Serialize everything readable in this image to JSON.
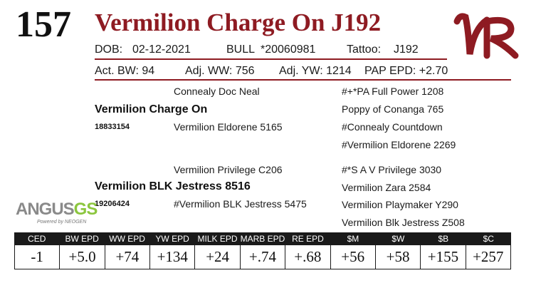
{
  "lot_number": "157",
  "animal_name": "Vermilion Charge On J192",
  "logo": {
    "letters": "VR",
    "color": "#8e1b22"
  },
  "info": {
    "dob_label": "DOB:",
    "dob": "02-12-2021",
    "sex": "BULL",
    "registration": "*20060981",
    "tattoo_label": "Tattoo:",
    "tattoo": "J192"
  },
  "performance": {
    "act_bw": "Act. BW: 94",
    "adj_ww": "Adj. WW: 756",
    "adj_yw": "Adj. YW: 1214",
    "pap_epd": "PAP EPD: +2.70"
  },
  "pedigree": {
    "sire": "Vermilion Charge On",
    "sire_reg": "18833154",
    "sire_sire": "Connealy Doc Neal",
    "sire_dam": "Vermilion Eldorene 5165",
    "sss": "#+*PA Full Power 1208",
    "ssd": "Poppy of Conanga 765",
    "sds": "#Connealy Countdown",
    "sdd": "#Vermilion Eldorene 2269",
    "dam": "Vermilion BLK Jestress 8516",
    "dam_reg": "19206424",
    "dam_sire": "Vermilion Privilege C206",
    "dam_dam": "#Vermilion BLK Jestress 5475",
    "dss": "#*S A V Privilege 3030",
    "dsd": "Vermilion Zara 2584",
    "dds": "Vermilion Playmaker Y290",
    "ddd": "Vermilion Blk Jestress Z508"
  },
  "angus_logo": {
    "angus": "ANGUS",
    "gs": "GS",
    "sub": "Powered by NEOGEN"
  },
  "epd_headers": [
    "CED",
    "BW EPD",
    "WW EPD",
    "YW EPD",
    "MILK EPD",
    "MARB EPD",
    "RE EPD",
    "$M",
    "$W",
    "$B",
    "$C"
  ],
  "epd_values": [
    "-1",
    "+5.0",
    "+74",
    "+134",
    "+24",
    "+.74",
    "+.68",
    "+56",
    "+58",
    "+155",
    "+257"
  ]
}
